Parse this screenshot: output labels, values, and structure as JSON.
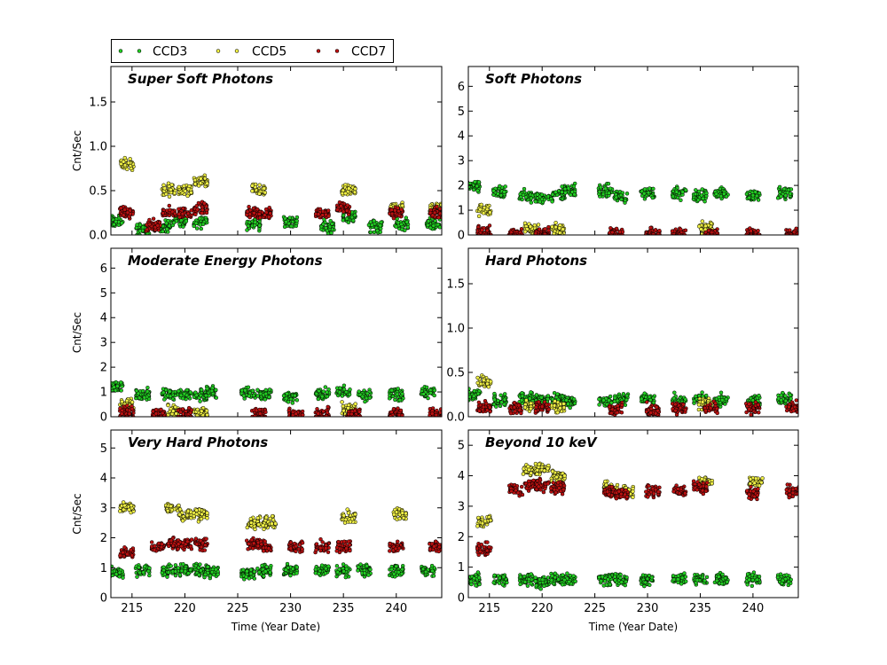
{
  "legend": [
    {
      "name": "CCD3",
      "color": "#22cc22"
    },
    {
      "name": "CCD5",
      "color": "#eeee44"
    },
    {
      "name": "CCD7",
      "color": "#bb1111"
    }
  ],
  "xlabel": "Time (Year Date)",
  "ylabel": "Cnt/Sec",
  "chart_data": [
    {
      "type": "scatter",
      "title": "Super Soft Photons",
      "xlim": [
        213,
        244.3
      ],
      "ylim": [
        0,
        1.9
      ],
      "xticks": [
        215,
        220,
        225,
        230,
        235,
        240
      ],
      "xticklabels": [
        "",
        "",
        "",
        "",
        "",
        ""
      ],
      "yticks": [
        0,
        0.5,
        1.0,
        1.5
      ],
      "yticklabels": [
        "0.0",
        "0.5",
        "1.0",
        "1.5"
      ],
      "ylabel": "Cnt/Sec",
      "series": [
        {
          "name": "CCD3",
          "values": [
            [
              213.5,
              0.15
            ],
            [
              216,
              0.06
            ],
            [
              218,
              0.1
            ],
            [
              219.5,
              0.15
            ],
            [
              221.5,
              0.15
            ],
            [
              226.5,
              0.12
            ],
            [
              230,
              0.15
            ],
            [
              233.5,
              0.1
            ],
            [
              235.5,
              0.2
            ],
            [
              238,
              0.1
            ],
            [
              240.5,
              0.12
            ],
            [
              243.5,
              0.12
            ]
          ]
        },
        {
          "name": "CCD5",
          "values": [
            [
              214.5,
              0.8
            ],
            [
              218.5,
              0.5
            ],
            [
              220,
              0.5
            ],
            [
              221.5,
              0.6
            ],
            [
              227,
              0.5
            ],
            [
              235.5,
              0.5
            ],
            [
              240,
              0.3
            ],
            [
              243.8,
              0.3
            ]
          ]
        },
        {
          "name": "CCD7",
          "values": [
            [
              214.5,
              0.25
            ],
            [
              217,
              0.1
            ],
            [
              218.5,
              0.25
            ],
            [
              220,
              0.25
            ],
            [
              221.5,
              0.3
            ],
            [
              226.5,
              0.25
            ],
            [
              227.5,
              0.25
            ],
            [
              233,
              0.25
            ],
            [
              235,
              0.3
            ],
            [
              240,
              0.25
            ],
            [
              243.8,
              0.25
            ]
          ]
        }
      ]
    },
    {
      "type": "scatter",
      "title": "Soft Photons",
      "xlim": [
        213,
        244.3
      ],
      "ylim": [
        0,
        6.8
      ],
      "xticks": [
        215,
        220,
        225,
        230,
        235,
        240
      ],
      "xticklabels": [
        "",
        "",
        "",
        "",
        "",
        ""
      ],
      "yticks": [
        0,
        1,
        2,
        3,
        4,
        5,
        6
      ],
      "yticklabels": [
        "0",
        "1",
        "2",
        "3",
        "4",
        "5",
        "6"
      ],
      "ylabel": "",
      "series": [
        {
          "name": "CCD3",
          "values": [
            [
              213.5,
              2.0
            ],
            [
              216,
              1.7
            ],
            [
              218.5,
              1.6
            ],
            [
              220,
              1.5
            ],
            [
              221.5,
              1.6
            ],
            [
              222.5,
              1.8
            ],
            [
              226,
              1.8
            ],
            [
              227.5,
              1.5
            ],
            [
              230,
              1.7
            ],
            [
              233,
              1.7
            ],
            [
              235,
              1.6
            ],
            [
              237,
              1.7
            ],
            [
              240,
              1.6
            ],
            [
              243,
              1.7
            ]
          ]
        },
        {
          "name": "CCD5",
          "values": [
            [
              214.5,
              1.0
            ],
            [
              219,
              0.2
            ],
            [
              221.5,
              0.2
            ],
            [
              235.5,
              0.3
            ]
          ]
        },
        {
          "name": "CCD7",
          "values": [
            [
              214.5,
              0.1
            ],
            [
              217.5,
              0.05
            ],
            [
              220,
              0.05
            ],
            [
              227,
              0.05
            ],
            [
              230.5,
              0.05
            ],
            [
              233,
              0.05
            ],
            [
              236,
              0.05
            ],
            [
              240,
              0.05
            ],
            [
              243.8,
              0.05
            ]
          ]
        }
      ]
    },
    {
      "type": "scatter",
      "title": "Moderate Energy Photons",
      "xlim": [
        213,
        244.3
      ],
      "ylim": [
        0,
        6.8
      ],
      "xticks": [
        215,
        220,
        225,
        230,
        235,
        240
      ],
      "xticklabels": [
        "",
        "",
        "",
        "",
        "",
        ""
      ],
      "yticks": [
        0,
        1,
        2,
        3,
        4,
        5,
        6
      ],
      "yticklabels": [
        "0",
        "1",
        "2",
        "3",
        "4",
        "5",
        "6"
      ],
      "ylabel": "Cnt/Sec",
      "series": [
        {
          "name": "CCD3",
          "values": [
            [
              213.5,
              1.2
            ],
            [
              216,
              0.9
            ],
            [
              218.5,
              0.9
            ],
            [
              220,
              0.9
            ],
            [
              221.5,
              0.9
            ],
            [
              222.5,
              1.0
            ],
            [
              226,
              0.9
            ],
            [
              227.5,
              0.9
            ],
            [
              230,
              0.8
            ],
            [
              233,
              0.9
            ],
            [
              235,
              1.0
            ],
            [
              237,
              0.9
            ],
            [
              240,
              0.9
            ],
            [
              243,
              1.0
            ]
          ]
        },
        {
          "name": "CCD5",
          "values": [
            [
              214.5,
              0.5
            ],
            [
              219,
              0.2
            ],
            [
              221.5,
              0.2
            ],
            [
              235.5,
              0.3
            ]
          ]
        },
        {
          "name": "CCD7",
          "values": [
            [
              214.5,
              0.2
            ],
            [
              217.5,
              0.1
            ],
            [
              220,
              0.1
            ],
            [
              227,
              0.1
            ],
            [
              230.5,
              0.1
            ],
            [
              233,
              0.1
            ],
            [
              236,
              0.1
            ],
            [
              240,
              0.1
            ],
            [
              243.8,
              0.1
            ]
          ]
        }
      ]
    },
    {
      "type": "scatter",
      "title": "Hard Photons",
      "xlim": [
        213,
        244.3
      ],
      "ylim": [
        0,
        1.9
      ],
      "xticks": [
        215,
        220,
        225,
        230,
        235,
        240
      ],
      "xticklabels": [
        "",
        "",
        "",
        "",
        "",
        ""
      ],
      "yticks": [
        0,
        0.5,
        1.0,
        1.5
      ],
      "yticklabels": [
        "0.0",
        "0.5",
        "1.0",
        "1.5"
      ],
      "ylabel": "",
      "series": [
        {
          "name": "CCD3",
          "values": [
            [
              213.5,
              0.25
            ],
            [
              216,
              0.18
            ],
            [
              218.5,
              0.2
            ],
            [
              220,
              0.2
            ],
            [
              221.5,
              0.2
            ],
            [
              222.5,
              0.18
            ],
            [
              226,
              0.18
            ],
            [
              227.5,
              0.2
            ],
            [
              230,
              0.2
            ],
            [
              233,
              0.18
            ],
            [
              235,
              0.2
            ],
            [
              237,
              0.18
            ],
            [
              240,
              0.18
            ],
            [
              243,
              0.2
            ]
          ]
        },
        {
          "name": "CCD5",
          "values": [
            [
              214.5,
              0.4
            ],
            [
              219,
              0.12
            ],
            [
              221.5,
              0.12
            ],
            [
              235.5,
              0.15
            ]
          ]
        },
        {
          "name": "CCD7",
          "values": [
            [
              214.5,
              0.1
            ],
            [
              217.5,
              0.1
            ],
            [
              220,
              0.1
            ],
            [
              227,
              0.1
            ],
            [
              230.5,
              0.08
            ],
            [
              233,
              0.1
            ],
            [
              236,
              0.1
            ],
            [
              240,
              0.1
            ],
            [
              243.8,
              0.1
            ]
          ]
        }
      ]
    },
    {
      "type": "scatter",
      "title": "Very Hard Photons",
      "xlim": [
        213,
        244.3
      ],
      "ylim": [
        0,
        5.6
      ],
      "xticks": [
        215,
        220,
        225,
        230,
        235,
        240
      ],
      "xticklabels": [
        "215",
        "220",
        "225",
        "230",
        "235",
        "240"
      ],
      "yticks": [
        0,
        1,
        2,
        3,
        4,
        5
      ],
      "yticklabels": [
        "0",
        "1",
        "2",
        "3",
        "4",
        "5"
      ],
      "ylabel": "Cnt/Sec",
      "series": [
        {
          "name": "CCD3",
          "values": [
            [
              213.5,
              0.8
            ],
            [
              216,
              0.9
            ],
            [
              218.5,
              0.9
            ],
            [
              220,
              0.9
            ],
            [
              221.5,
              0.9
            ],
            [
              222.5,
              0.9
            ],
            [
              226,
              0.8
            ],
            [
              227.5,
              0.9
            ],
            [
              230,
              0.9
            ],
            [
              233,
              0.9
            ],
            [
              235,
              0.9
            ],
            [
              237,
              0.9
            ],
            [
              240,
              0.9
            ],
            [
              243,
              0.9
            ]
          ]
        },
        {
          "name": "CCD5",
          "values": [
            [
              214.5,
              3.0
            ],
            [
              218.8,
              3.0
            ],
            [
              220,
              2.8
            ],
            [
              221.5,
              2.8
            ],
            [
              226.5,
              2.5
            ],
            [
              228,
              2.5
            ],
            [
              235.5,
              2.7
            ],
            [
              240.3,
              2.8
            ]
          ]
        },
        {
          "name": "CCD7",
          "values": [
            [
              214.5,
              1.5
            ],
            [
              217.5,
              1.7
            ],
            [
              219,
              1.8
            ],
            [
              220,
              1.8
            ],
            [
              221.5,
              1.8
            ],
            [
              226.5,
              1.8
            ],
            [
              227.5,
              1.7
            ],
            [
              230.5,
              1.7
            ],
            [
              233,
              1.7
            ],
            [
              235,
              1.7
            ],
            [
              240,
              1.7
            ],
            [
              243.8,
              1.7
            ]
          ]
        }
      ]
    },
    {
      "type": "scatter",
      "title": "Beyond 10 keV",
      "xlim": [
        213,
        244.3
      ],
      "ylim": [
        0,
        5.5
      ],
      "xticks": [
        215,
        220,
        225,
        230,
        235,
        240
      ],
      "xticklabels": [
        "215",
        "220",
        "225",
        "230",
        "235",
        "240"
      ],
      "yticks": [
        0,
        1,
        2,
        3,
        4,
        5
      ],
      "yticklabels": [
        "0",
        "1",
        "2",
        "3",
        "4",
        "5"
      ],
      "ylabel": "",
      "series": [
        {
          "name": "CCD3",
          "values": [
            [
              213.5,
              0.6
            ],
            [
              216,
              0.6
            ],
            [
              218.5,
              0.6
            ],
            [
              220,
              0.5
            ],
            [
              221.5,
              0.6
            ],
            [
              222.5,
              0.6
            ],
            [
              226,
              0.6
            ],
            [
              227.5,
              0.6
            ],
            [
              230,
              0.6
            ],
            [
              233,
              0.6
            ],
            [
              235,
              0.6
            ],
            [
              237,
              0.6
            ],
            [
              240,
              0.6
            ],
            [
              243,
              0.6
            ]
          ]
        },
        {
          "name": "CCD5",
          "values": [
            [
              214.5,
              2.5
            ],
            [
              218.8,
              4.2
            ],
            [
              220,
              4.2
            ],
            [
              221.5,
              4.0
            ],
            [
              226.5,
              3.6
            ],
            [
              228,
              3.5
            ],
            [
              235.5,
              3.8
            ],
            [
              240.3,
              3.8
            ]
          ]
        },
        {
          "name": "CCD7",
          "values": [
            [
              214.5,
              1.6
            ],
            [
              217.5,
              3.5
            ],
            [
              219,
              3.7
            ],
            [
              220,
              3.7
            ],
            [
              221.5,
              3.6
            ],
            [
              226.5,
              3.5
            ],
            [
              227.5,
              3.4
            ],
            [
              230.5,
              3.5
            ],
            [
              233,
              3.5
            ],
            [
              235,
              3.6
            ],
            [
              240,
              3.4
            ],
            [
              243.8,
              3.5
            ]
          ]
        }
      ]
    }
  ]
}
